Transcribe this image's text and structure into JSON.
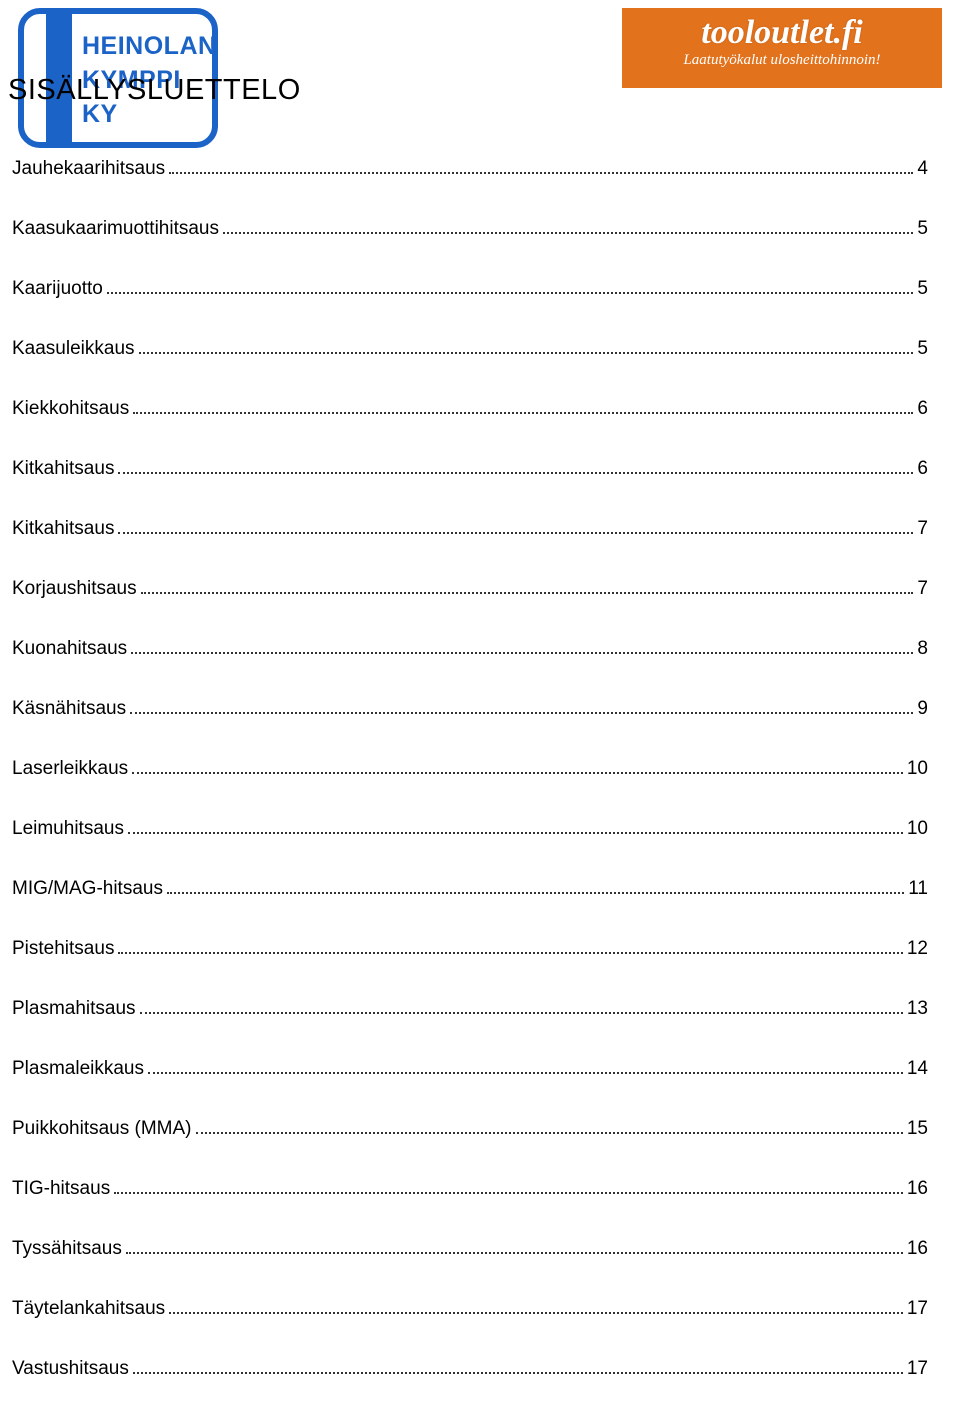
{
  "logo_left": {
    "line1": "HEINOLAN",
    "line2": "KYMPPI KY",
    "border_color": "#1b63c6",
    "text_color": "#1b63c6"
  },
  "logo_right": {
    "line1": "tooloutlet.fi",
    "line2": "Laatutyökalut ulosheittohinnoin!",
    "bg_color": "#e2721c",
    "text_color": "#ffffff"
  },
  "title": "SISÄLLYSLUETTELO",
  "toc": [
    {
      "label": "Jauhekaarihitsaus",
      "page": "4"
    },
    {
      "label": "Kaasukaarimuottihitsaus",
      "page": "5"
    },
    {
      "label": "Kaarijuotto",
      "page": "5"
    },
    {
      "label": "Kaasuleikkaus",
      "page": "5"
    },
    {
      "label": "Kiekkohitsaus",
      "page": "6"
    },
    {
      "label": "Kitkahitsaus",
      "page": "6"
    },
    {
      "label": "Kitkahitsaus",
      "page": "7"
    },
    {
      "label": "Korjaushitsaus",
      "page": "7"
    },
    {
      "label": "Kuonahitsaus",
      "page": "8"
    },
    {
      "label": "Käsnähitsaus",
      "page": "9"
    },
    {
      "label": "Laserleikkaus",
      "page": "10"
    },
    {
      "label": "Leimuhitsaus",
      "page": "10"
    },
    {
      "label": "MIG/MAG-hitsaus",
      "page": "11"
    },
    {
      "label": "Pistehitsaus",
      "page": "12"
    },
    {
      "label": "Plasmahitsaus",
      "page": "13"
    },
    {
      "label": "Plasmaleikkaus",
      "page": "14"
    },
    {
      "label": "Puikkohitsaus (MMA)",
      "page": "15"
    },
    {
      "label": "TIG-hitsaus",
      "page": "16"
    },
    {
      "label": "Tyssähitsaus",
      "page": "16"
    },
    {
      "label": "Täytelankahitsaus",
      "page": "17"
    },
    {
      "label": "Vastushitsaus",
      "page": "17"
    }
  ]
}
